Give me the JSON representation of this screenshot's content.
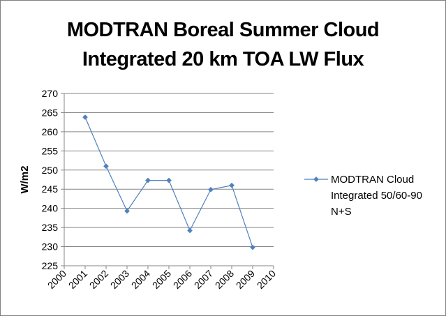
{
  "chart_data": {
    "type": "line",
    "title_lines": [
      "MODTRAN Boreal Summer Cloud",
      "Integrated 20 km TOA LW Flux"
    ],
    "xlabel": "",
    "ylabel": "W/m2",
    "x_ticks": [
      "2000",
      "2001",
      "2002",
      "2003",
      "2004",
      "2005",
      "2006",
      "2007",
      "2008",
      "2009",
      "2010"
    ],
    "y_ticks": [
      "225",
      "230",
      "235",
      "240",
      "245",
      "250",
      "255",
      "260",
      "265",
      "270"
    ],
    "ylim": [
      225,
      270
    ],
    "xlim": [
      2000,
      2010
    ],
    "grid": "horizontal",
    "legend_position": "right",
    "series": [
      {
        "name": "MODTRAN Cloud Integrated 50/60-90 N+S",
        "legend_lines": [
          "MODTRAN Cloud",
          "Integrated 50/60-90",
          "N+S"
        ],
        "color": "#4f81bd",
        "x": [
          2001,
          2002,
          2003,
          2004,
          2005,
          2006,
          2007,
          2008,
          2009
        ],
        "y": [
          263.8,
          251.0,
          239.3,
          247.3,
          247.3,
          234.2,
          244.9,
          246.0,
          229.8
        ]
      }
    ]
  }
}
